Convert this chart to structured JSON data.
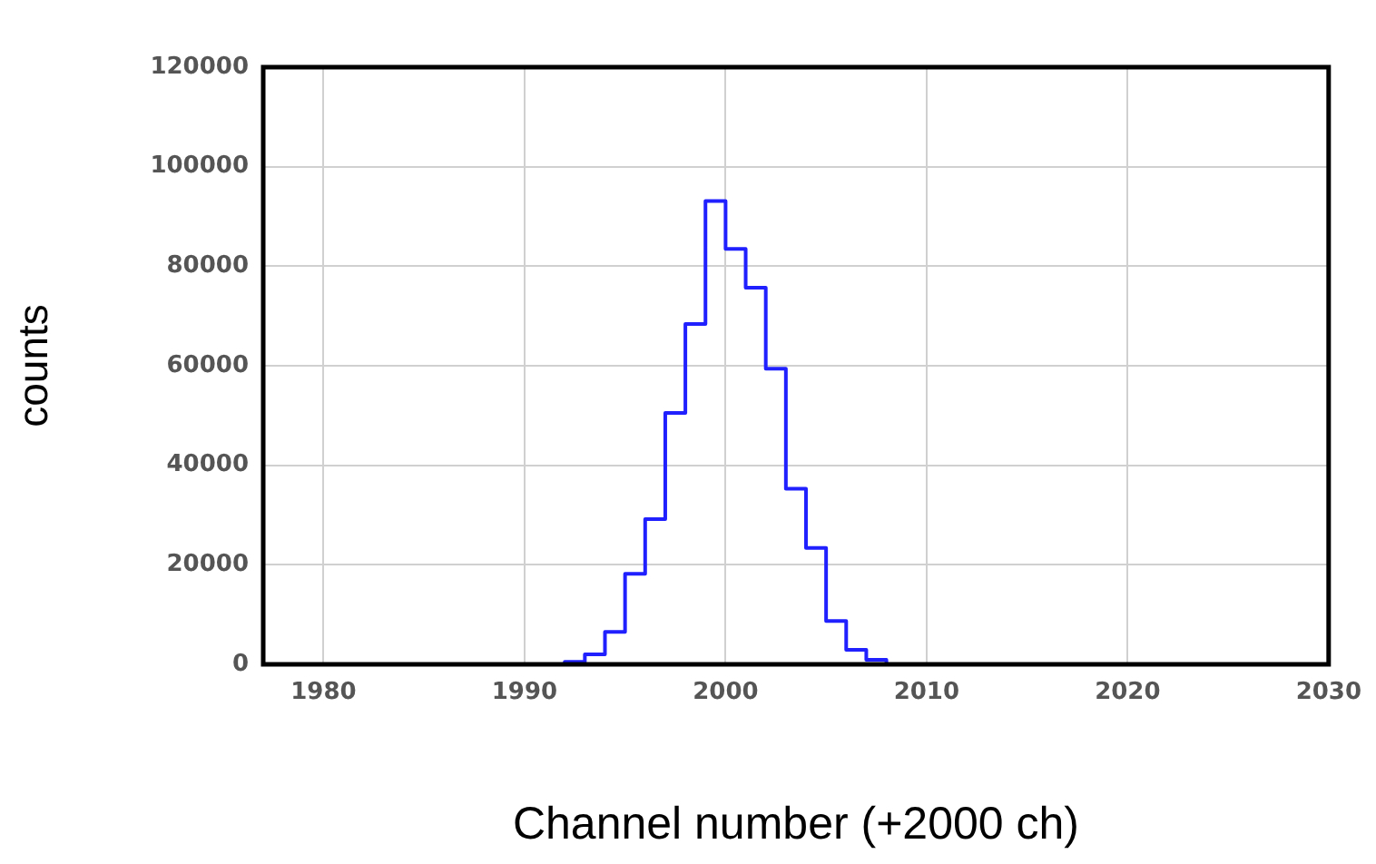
{
  "chart_data": {
    "type": "histogram",
    "xlabel": "Channel number (+2000 ch)",
    "ylabel": "counts",
    "bins": [
      1992,
      1993,
      1994,
      1995,
      1996,
      1997,
      1998,
      1999,
      2000,
      2001,
      2002,
      2003,
      2004,
      2005,
      2006,
      2007,
      2008
    ],
    "values": [
      500,
      2000,
      6500,
      18200,
      29200,
      50500,
      68400,
      93100,
      83500,
      75700,
      59400,
      35300,
      23400,
      8700,
      2900,
      900
    ],
    "color": "#2020ff",
    "xlim": [
      1977,
      2030
    ],
    "xticks": [
      1980,
      1990,
      2000,
      2010,
      2020,
      2030
    ],
    "ylim": [
      0,
      120000
    ],
    "yticks": [
      0,
      20000,
      40000,
      60000,
      80000,
      100000,
      120000
    ],
    "grid": true,
    "legend": false
  }
}
